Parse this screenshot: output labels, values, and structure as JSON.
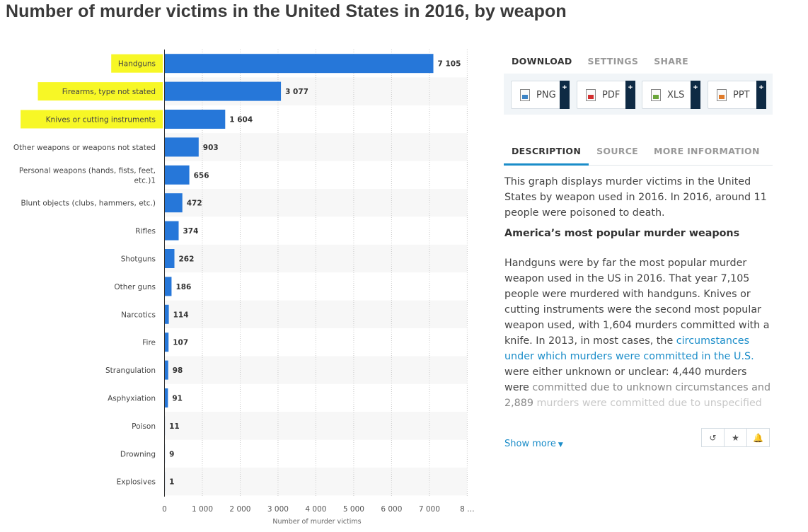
{
  "title": "Number of murder victims in the United States in 2016, by weapon",
  "chart_data": {
    "type": "bar",
    "orientation": "horizontal",
    "title": "Number of murder victims in the United States in 2016, by weapon",
    "xlabel": "Number of murder victims",
    "ylabel": "",
    "xlim": [
      0,
      8000
    ],
    "xticks": [
      "0",
      "1 000",
      "2 000",
      "3 000",
      "4 000",
      "5 000",
      "6 000",
      "7 000",
      "8 …"
    ],
    "grid": true,
    "highlighted_categories": [
      "Handguns",
      "Firearms, type not stated",
      "Knives or cutting instruments"
    ],
    "categories": [
      "Handguns",
      "Firearms, type not stated",
      "Knives or cutting instruments",
      "Other weapons or weapons not stated",
      "Personal weapons (hands, fists, feet, etc.)1",
      "Blunt objects (clubs, hammers, etc.)",
      "Rifles",
      "Shotguns",
      "Other guns",
      "Narcotics",
      "Fire",
      "Strangulation",
      "Asphyxiation",
      "Poison",
      "Drowning",
      "Explosives"
    ],
    "category_lines": [
      [
        "Handguns"
      ],
      [
        "Firearms, type not stated"
      ],
      [
        "Knives or cutting instruments"
      ],
      [
        "Other weapons or weapons not stated"
      ],
      [
        "Personal weapons (hands, fists, feet,",
        "etc.)1"
      ],
      [
        "Blunt objects (clubs, hammers, etc.)"
      ],
      [
        "Rifles"
      ],
      [
        "Shotguns"
      ],
      [
        "Other guns"
      ],
      [
        "Narcotics"
      ],
      [
        "Fire"
      ],
      [
        "Strangulation"
      ],
      [
        "Asphyxiation"
      ],
      [
        "Poison"
      ],
      [
        "Drowning"
      ],
      [
        "Explosives"
      ]
    ],
    "values": [
      7105,
      3077,
      1604,
      903,
      656,
      472,
      374,
      262,
      186,
      114,
      107,
      98,
      91,
      11,
      9,
      1
    ],
    "value_labels": [
      "7 105",
      "3 077",
      "1 604",
      "903",
      "656",
      "472",
      "374",
      "262",
      "186",
      "114",
      "107",
      "98",
      "91",
      "11",
      "9",
      "1"
    ],
    "bar_color": "#2677d9",
    "highlight_color": "#f7f71a"
  },
  "download": {
    "tabs": [
      "DOWNLOAD",
      "SETTINGS",
      "SHARE"
    ],
    "buttons": [
      {
        "label": "PNG",
        "icon": "png-file-icon"
      },
      {
        "label": "PDF",
        "icon": "pdf-file-icon"
      },
      {
        "label": "XLS",
        "icon": "xls-file-icon"
      },
      {
        "label": "PPT",
        "icon": "ppt-file-icon"
      }
    ],
    "plus": "+"
  },
  "info": {
    "tabs": [
      "DESCRIPTION",
      "SOURCE",
      "MORE INFORMATION"
    ],
    "paragraph1": "This graph displays murder victims in the United States by weapon used in 2016. In 2016, around 11 people were poisoned to death.",
    "heading": "America’s most popular murder weapons",
    "p2_text": "Handguns were by far the most popular murder weapon used in the US in 2016. That year 7,105 people were murdered with handguns. Knives or cutting instruments were the second most popular weapon used, with 1,604 murders committed with a knife. In 2013, in most cases, the ",
    "p2_link": "circumstances under which murders were committed in the U.S.",
    "p2_after": " were either unknown or unclear: 4,440 murders were",
    "p2_fade1": "committed due to unknown circumstances and 2,889",
    "p2_fade2": "murders were committed due to unspecified",
    "show_more": "Show more",
    "caret": "▼"
  },
  "actions": [
    {
      "name": "history-icon",
      "glyph": "↺"
    },
    {
      "name": "star-icon",
      "glyph": "★"
    },
    {
      "name": "bell-icon",
      "glyph": "🔔"
    }
  ]
}
